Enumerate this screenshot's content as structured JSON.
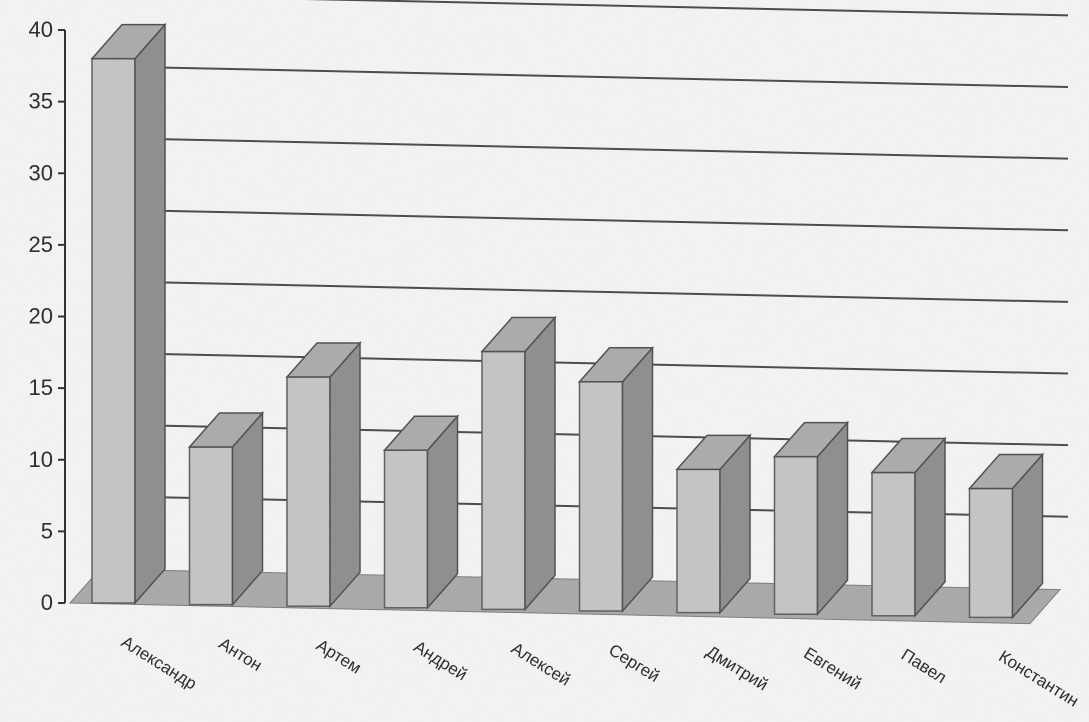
{
  "chart_data": {
    "type": "bar",
    "title": "",
    "xlabel": "",
    "ylabel": "",
    "ylim": [
      0,
      40
    ],
    "y_ticks": [
      "0",
      "5",
      "10",
      "15",
      "20",
      "25",
      "30",
      "35",
      "40"
    ],
    "grid": true,
    "three_d": true,
    "categories": [
      "Александр",
      "Антон",
      "Артем",
      "Андрей",
      "Алексей",
      "Сергей",
      "Дмитрий",
      "Евгений",
      "Павел",
      "Константин"
    ],
    "values": [
      38,
      11,
      16,
      11,
      18,
      16,
      10,
      11,
      10,
      9
    ]
  },
  "colors": {
    "background": "#f3f3f1",
    "bar_front": "#c4c4c4",
    "bar_side": "#8e8e8e",
    "bar_top": "#ababab",
    "floor": "#a9a9a9",
    "grid": "#4a4a4a",
    "axis": "#2f2f2f",
    "text": "#2a2a2a"
  }
}
